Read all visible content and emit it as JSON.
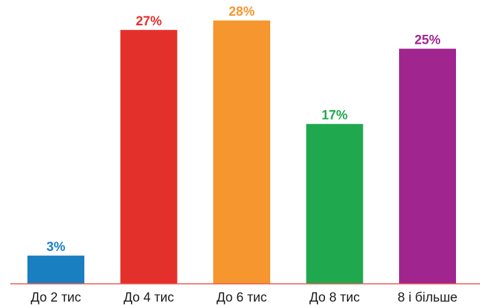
{
  "chart_data": {
    "type": "bar",
    "categories": [
      "До 2 тис",
      "До 4 тис",
      "До 6 тис",
      "До 8 тис",
      "8 і більше"
    ],
    "values": [
      3,
      27,
      28,
      17,
      25
    ],
    "value_labels": [
      "3%",
      "27%",
      "28%",
      "17%",
      "25%"
    ],
    "colors": [
      "#1a7fc1",
      "#e4302b",
      "#f5962e",
      "#20a84f",
      "#a0258f"
    ],
    "axis_color": "#e8564e",
    "ylim": [
      0,
      28
    ],
    "grid": false,
    "legend": "none",
    "title": "",
    "xlabel": "",
    "ylabel": ""
  }
}
